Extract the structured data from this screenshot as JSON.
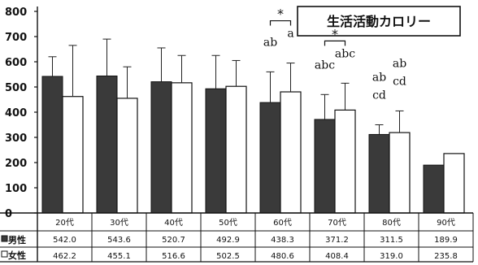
{
  "chart_data": {
    "type": "bar",
    "title": "生活活動カロリー",
    "categories": [
      "20代",
      "30代",
      "40代",
      "50代",
      "60代",
      "70代",
      "80代",
      "90代"
    ],
    "series": [
      {
        "name": "男性",
        "values": [
          542.0,
          543.6,
          520.7,
          492.9,
          438.3,
          371.2,
          311.5,
          189.9
        ],
        "display": [
          "542.0",
          "543.6",
          "520.7",
          "492.9",
          "438.3",
          "371.2",
          "311.5",
          "189.9"
        ],
        "error_upper": [
          620,
          690,
          655,
          625,
          560,
          470,
          350,
          null
        ],
        "color": "#3a3a3a"
      },
      {
        "name": "女性",
        "values": [
          462.2,
          455.1,
          516.6,
          502.5,
          480.6,
          408.4,
          319.0,
          235.8
        ],
        "display": [
          "462.2",
          "455.1",
          "516.6",
          "502.5",
          "480.6",
          "408.4",
          "319.0",
          "235.8"
        ],
        "error_upper": [
          665,
          580,
          625,
          605,
          595,
          515,
          405,
          null
        ],
        "color": "#ffffff"
      }
    ],
    "ylim": [
      0,
      800
    ],
    "yticks": [
      0,
      100,
      200,
      300,
      400,
      500,
      600,
      700,
      800
    ],
    "annotations": [
      {
        "category": "60代",
        "series": "男性",
        "text": "ab"
      },
      {
        "category": "60代",
        "series": "女性",
        "text": "a"
      },
      {
        "category": "70代",
        "series": "男性",
        "text": "abc"
      },
      {
        "category": "70代",
        "series": "女性",
        "text": "abc"
      },
      {
        "category": "80代",
        "series": "男性",
        "text": "ab"
      },
      {
        "category": "80代",
        "series": "男性",
        "text": "cd"
      },
      {
        "category": "80代",
        "series": "女性",
        "text": "ab"
      },
      {
        "category": "80代",
        "series": "女性",
        "text": "cd"
      }
    ],
    "significance": [
      {
        "category": "60代",
        "text": "*"
      },
      {
        "category": "70代",
        "text": "*"
      }
    ],
    "legend": "table-bottom",
    "grid": false
  }
}
